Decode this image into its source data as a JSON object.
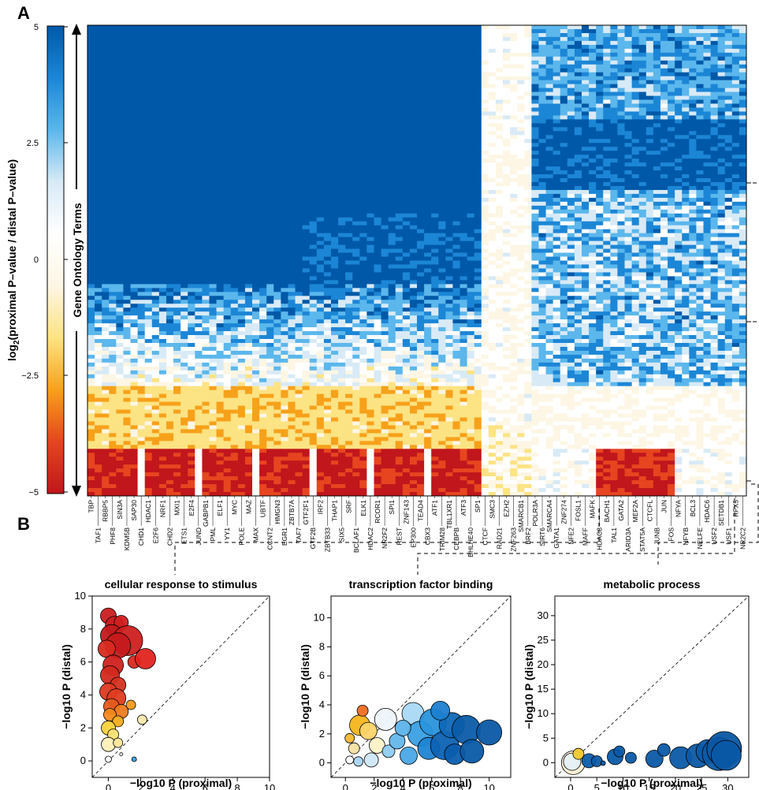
{
  "panels": {
    "a": "A",
    "b": "B"
  },
  "heatmap": {
    "type": "heatmap",
    "colorbar": {
      "label_main": "log",
      "label_sub": "2",
      "label_rest": "(proximal P–value / distal P–value)",
      "ticks": [
        "5",
        "2.5",
        "0",
        "−2.5",
        "−5"
      ],
      "range": [
        -5,
        5
      ],
      "colors": [
        "#c0161c",
        "#e6451f",
        "#f7a11a",
        "#fce383",
        "#fdf6e4",
        "#ffffff",
        "#d8eaf6",
        "#5bb7ec",
        "#1c86d6",
        "#0059a8"
      ]
    },
    "ylabel": "Gene Ontology Terms",
    "columns": [
      "TBP",
      "TAF1",
      "RBBP5",
      "PHF8",
      "SIN3A",
      "KDM5B",
      "SAP30",
      "CHD1",
      "HDAC1",
      "E2F6",
      "NRF1",
      "CHD2",
      "MXI1",
      "ETS1",
      "E2F4",
      "JUND",
      "GABPB1",
      "PML",
      "ELF1",
      "YY1",
      "MYC",
      "POLE",
      "MAZ",
      "MAX",
      "UBTF",
      "CCNT2",
      "HMGN3",
      "EGR1",
      "ZBTB7A",
      "TAF7",
      "GTF2F1",
      "GTF2B",
      "IRF2",
      "ZBTB33",
      "THAP1",
      "SIX5",
      "SRF",
      "BCLAF1",
      "ELK1",
      "HDAC2",
      "RCOR1",
      "NR2F2",
      "SPI1",
      "REST",
      "ZNF143",
      "EP300",
      "TEAD4",
      "CBX3",
      "ATF1",
      "TRIM28",
      "TBL1XR1",
      "CEBPB",
      "ATF3",
      "BHLHE40",
      "SP1",
      "CTCF",
      "SMC3",
      "RAD21",
      "EZH2",
      "ZNF263",
      "SMARCB1",
      "BRF2",
      "POLR3A",
      "SIRT6",
      "SMARCA4",
      "GATA1",
      "ZNF274",
      "NFE2",
      "FOSL1",
      "MAFF",
      "MAFK",
      "HDAC8",
      "BACH1",
      "TAL1",
      "GATA2",
      "ARID3A",
      "MEF2A",
      "STAT5A",
      "CTCFL",
      "JUNB",
      "JUN",
      "FOS",
      "NFYA",
      "NFYB",
      "BCL3",
      "NELFE",
      "HDAC6",
      "USF2",
      "SETDB1",
      "USF1",
      "RFX5",
      "NR2C2"
    ]
  },
  "scatters": {
    "xlabel": "−log10 P (proximal)",
    "ylabel": "−log10 P (distal)",
    "panels": [
      {
        "title": "cellular response to stimulus",
        "xticks": [
          "0",
          "2",
          "4",
          "6",
          "8",
          "10"
        ],
        "yticks": [
          "0",
          "2",
          "4",
          "6",
          "8",
          "10"
        ],
        "xlim": [
          -1,
          10
        ],
        "ylim": [
          -1,
          10
        ],
        "points": [
          {
            "x": 0.0,
            "y": 8.8,
            "r": 10,
            "c": "#c91e1f"
          },
          {
            "x": 0.4,
            "y": 8.2,
            "r": 12,
            "c": "#cc1f1f"
          },
          {
            "x": 0.8,
            "y": 8.4,
            "r": 9,
            "c": "#d21e1f"
          },
          {
            "x": 0.2,
            "y": 7.6,
            "r": 14,
            "c": "#c2191c"
          },
          {
            "x": 1.2,
            "y": 7.3,
            "r": 19,
            "c": "#cf1f1f"
          },
          {
            "x": 0.6,
            "y": 7.0,
            "r": 16,
            "c": "#c51a1d"
          },
          {
            "x": -0.1,
            "y": 6.8,
            "r": 11,
            "c": "#d92a1f"
          },
          {
            "x": 1.6,
            "y": 6.0,
            "r": 8,
            "c": "#d8281f"
          },
          {
            "x": 2.3,
            "y": 6.2,
            "r": 13,
            "c": "#e0241f"
          },
          {
            "x": 0.3,
            "y": 5.8,
            "r": 13,
            "c": "#cf211f"
          },
          {
            "x": 0.1,
            "y": 5.2,
            "r": 12,
            "c": "#d22a1f"
          },
          {
            "x": 0.6,
            "y": 4.6,
            "r": 10,
            "c": "#d63220"
          },
          {
            "x": 0.0,
            "y": 4.2,
            "r": 11,
            "c": "#dc3a20"
          },
          {
            "x": 0.5,
            "y": 3.8,
            "r": 12,
            "c": "#e03c20"
          },
          {
            "x": 0.2,
            "y": 3.3,
            "r": 10,
            "c": "#e65a1f"
          },
          {
            "x": 0.8,
            "y": 3.0,
            "r": 9,
            "c": "#ee7c1e"
          },
          {
            "x": 1.4,
            "y": 3.4,
            "r": 6,
            "c": "#f39a1c"
          },
          {
            "x": 0.1,
            "y": 2.8,
            "r": 8,
            "c": "#f4891e"
          },
          {
            "x": 0.6,
            "y": 2.4,
            "r": 7,
            "c": "#f6ac1a"
          },
          {
            "x": 0.0,
            "y": 2.0,
            "r": 9,
            "c": "#fbd23c"
          },
          {
            "x": 0.3,
            "y": 1.6,
            "r": 7,
            "c": "#fde274"
          },
          {
            "x": 0.0,
            "y": 1.0,
            "r": 9,
            "c": "#fef0b8"
          },
          {
            "x": 0.6,
            "y": 1.1,
            "r": 6,
            "c": "#fde79a"
          },
          {
            "x": 2.1,
            "y": 2.5,
            "r": 6,
            "c": "#fbe8ad"
          },
          {
            "x": 0.0,
            "y": 0.1,
            "r": 4,
            "c": "#ffffff"
          },
          {
            "x": 0.8,
            "y": 0.4,
            "r": 2,
            "c": "#ffffff"
          },
          {
            "x": 1.6,
            "y": 0.1,
            "r": 3,
            "c": "#2f9fe6"
          }
        ]
      },
      {
        "title": "transcription factor binding",
        "xticks": [
          "0",
          "2",
          "4",
          "6",
          "8",
          "10"
        ],
        "yticks": [
          "0",
          "2",
          "4",
          "6",
          "8",
          "10"
        ],
        "xlim": [
          -1,
          11.5
        ],
        "ylim": [
          -1,
          11.5
        ],
        "points": [
          {
            "x": 1.0,
            "y": 2.6,
            "r": 13,
            "c": "#f6b51b"
          },
          {
            "x": 1.2,
            "y": 3.6,
            "r": 7,
            "c": "#ef6e22"
          },
          {
            "x": 1.6,
            "y": 2.2,
            "r": 11,
            "c": "#fcd46a"
          },
          {
            "x": 2.2,
            "y": 1.2,
            "r": 10,
            "c": "#fef2c8"
          },
          {
            "x": 0.6,
            "y": 1.0,
            "r": 7,
            "c": "#f7e0a2"
          },
          {
            "x": 0.3,
            "y": 1.7,
            "r": 6,
            "c": "#f6b733"
          },
          {
            "x": 2.8,
            "y": 3.0,
            "r": 14,
            "c": "#eef5fb"
          },
          {
            "x": 1.8,
            "y": 0.2,
            "r": 9,
            "c": "#cfe7f7"
          },
          {
            "x": 0.9,
            "y": 0.1,
            "r": 6,
            "c": "#a9d6f3"
          },
          {
            "x": 0.3,
            "y": 0.2,
            "r": 5,
            "c": "#ffffff"
          },
          {
            "x": 3.0,
            "y": 0.8,
            "r": 8,
            "c": "#8fcbf0"
          },
          {
            "x": 3.6,
            "y": 1.5,
            "r": 10,
            "c": "#63b7ec"
          },
          {
            "x": 4.4,
            "y": 0.5,
            "r": 11,
            "c": "#4aa8e6"
          },
          {
            "x": 4.7,
            "y": 3.4,
            "r": 14,
            "c": "#a9d8f4"
          },
          {
            "x": 5.2,
            "y": 2.0,
            "r": 16,
            "c": "#3aa0e4"
          },
          {
            "x": 5.8,
            "y": 1.0,
            "r": 14,
            "c": "#1f84d4"
          },
          {
            "x": 6.1,
            "y": 2.8,
            "r": 17,
            "c": "#2a93dc"
          },
          {
            "x": 6.9,
            "y": 1.2,
            "r": 18,
            "c": "#0d62b3"
          },
          {
            "x": 7.4,
            "y": 2.6,
            "r": 16,
            "c": "#0f68b8"
          },
          {
            "x": 7.6,
            "y": 0.6,
            "r": 13,
            "c": "#0b5ead"
          },
          {
            "x": 8.4,
            "y": 2.3,
            "r": 18,
            "c": "#0b5ca9"
          },
          {
            "x": 8.8,
            "y": 0.8,
            "r": 15,
            "c": "#0a5aa7"
          },
          {
            "x": 10.0,
            "y": 2.1,
            "r": 16,
            "c": "#0a58a5"
          },
          {
            "x": 4.0,
            "y": 2.4,
            "r": 10,
            "c": "#5db3ea"
          },
          {
            "x": 6.6,
            "y": 3.6,
            "r": 12,
            "c": "#1c7fd0"
          }
        ]
      },
      {
        "title": "metabolic process",
        "xticks": [
          "0",
          "5",
          "10",
          "15",
          "20",
          "25",
          "30"
        ],
        "yticks": [
          "0",
          "5",
          "10",
          "15",
          "20",
          "25",
          "30"
        ],
        "xlim": [
          -3,
          34
        ],
        "ylim": [
          -3,
          34
        ],
        "points": [
          {
            "x": 0.5,
            "y": 0.0,
            "r": 15,
            "c": "#fdf1d6"
          },
          {
            "x": 0.3,
            "y": 0.2,
            "r": 11,
            "c": "#e5f0f8"
          },
          {
            "x": 1.5,
            "y": 1.8,
            "r": 7,
            "c": "#f6c92e"
          },
          {
            "x": 3.5,
            "y": 0.4,
            "r": 9,
            "c": "#0d5eac"
          },
          {
            "x": 5.0,
            "y": 0.3,
            "r": 7,
            "c": "#0b5aa7"
          },
          {
            "x": 6.2,
            "y": -0.1,
            "r": 3,
            "c": "#0b5aa7"
          },
          {
            "x": 8.5,
            "y": 1.2,
            "r": 10,
            "c": "#0b5aa7"
          },
          {
            "x": 9.3,
            "y": 2.3,
            "r": 7,
            "c": "#0b5aa7"
          },
          {
            "x": 11.5,
            "y": 1.0,
            "r": 7,
            "c": "#0b5aa7"
          },
          {
            "x": 16.0,
            "y": 0.8,
            "r": 11,
            "c": "#0b5aa7"
          },
          {
            "x": 17.8,
            "y": 2.6,
            "r": 8,
            "c": "#0b5aa7"
          },
          {
            "x": 21.0,
            "y": 1.0,
            "r": 14,
            "c": "#0b5aa7"
          },
          {
            "x": 24.3,
            "y": 1.4,
            "r": 15,
            "c": "#0b5aa7"
          },
          {
            "x": 26.2,
            "y": 2.3,
            "r": 15,
            "c": "#0b5aa7"
          },
          {
            "x": 28.3,
            "y": 1.8,
            "r": 21,
            "c": "#0b5aa7"
          },
          {
            "x": 29.3,
            "y": 2.8,
            "r": 22,
            "c": "#0a57a3"
          },
          {
            "x": 29.7,
            "y": 1.5,
            "r": 19,
            "c": "#0a59a6"
          }
        ]
      }
    ]
  }
}
